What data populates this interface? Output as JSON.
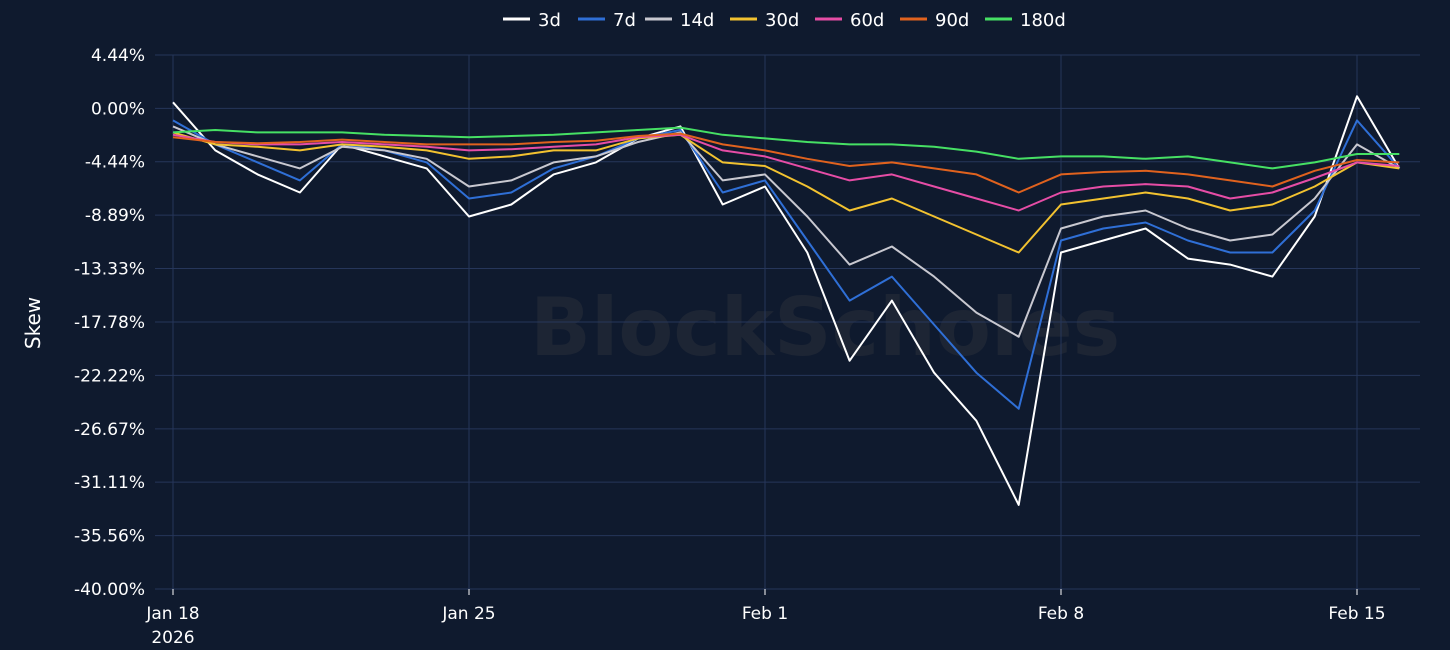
{
  "watermark": "BlockScholes",
  "chart_data": {
    "type": "line",
    "title": "",
    "ylabel": "Skew",
    "xlabel": "",
    "ylim": [
      -40.0,
      4.44
    ],
    "yticks": [
      "4.44%",
      "0.00%",
      "-4.44%",
      "-8.89%",
      "-13.33%",
      "-17.78%",
      "-22.22%",
      "-26.67%",
      "-31.11%",
      "-35.56%",
      "-40.00%"
    ],
    "ytick_values": [
      4.44,
      0.0,
      -4.44,
      -8.89,
      -13.33,
      -17.78,
      -22.22,
      -26.67,
      -31.11,
      -35.56,
      -40.0
    ],
    "xlim": [
      "2026-01-18",
      "2026-02-16"
    ],
    "xticks": [
      {
        "date": "2026-01-18",
        "label": "Jan 18",
        "sublabel": "2026"
      },
      {
        "date": "2026-01-25",
        "label": "Jan 25",
        "sublabel": ""
      },
      {
        "date": "2026-02-01",
        "label": "Feb 1",
        "sublabel": ""
      },
      {
        "date": "2026-02-08",
        "label": "Feb 8",
        "sublabel": ""
      },
      {
        "date": "2026-02-15",
        "label": "Feb 15",
        "sublabel": ""
      }
    ],
    "grid": true,
    "legend_position": "top-center",
    "x": [
      "2026-01-18",
      "2026-01-19",
      "2026-01-20",
      "2026-01-21",
      "2026-01-22",
      "2026-01-23",
      "2026-01-24",
      "2026-01-25",
      "2026-01-26",
      "2026-01-27",
      "2026-01-28",
      "2026-01-29",
      "2026-01-30",
      "2026-01-31",
      "2026-02-01",
      "2026-02-02",
      "2026-02-03",
      "2026-02-04",
      "2026-02-05",
      "2026-02-06",
      "2026-02-07",
      "2026-02-08",
      "2026-02-09",
      "2026-02-10",
      "2026-02-11",
      "2026-02-12",
      "2026-02-13",
      "2026-02-14",
      "2026-02-15",
      "2026-02-16"
    ],
    "series": [
      {
        "name": "3d",
        "color": "#ffffff",
        "values": [
          0.5,
          -3.5,
          -5.5,
          -7.0,
          -3.0,
          -4.0,
          -5.0,
          -9.0,
          -8.0,
          -5.5,
          -4.5,
          -2.5,
          -1.5,
          -8.0,
          -6.5,
          -12.0,
          -21.0,
          -16.0,
          -22.0,
          -26.0,
          -33.0,
          -12.0,
          -11.0,
          -10.0,
          -12.5,
          -13.0,
          -14.0,
          -9.0,
          1.0,
          -5.0
        ]
      },
      {
        "name": "7d",
        "color": "#2f6fd6",
        "values": [
          -1.0,
          -3.0,
          -4.5,
          -6.0,
          -3.0,
          -3.5,
          -4.5,
          -7.5,
          -7.0,
          -5.0,
          -4.0,
          -2.5,
          -1.8,
          -7.0,
          -6.0,
          -11.0,
          -16.0,
          -14.0,
          -18.0,
          -22.0,
          -25.0,
          -11.0,
          -10.0,
          -9.5,
          -11.0,
          -12.0,
          -12.0,
          -8.5,
          -1.0,
          -5.0
        ]
      },
      {
        "name": "14d",
        "color": "#c8c8d0",
        "values": [
          -1.5,
          -3.0,
          -4.0,
          -5.0,
          -3.2,
          -3.5,
          -4.2,
          -6.5,
          -6.0,
          -4.5,
          -4.0,
          -2.8,
          -2.0,
          -6.0,
          -5.5,
          -9.0,
          -13.0,
          -11.5,
          -14.0,
          -17.0,
          -19.0,
          -10.0,
          -9.0,
          -8.5,
          -10.0,
          -11.0,
          -10.5,
          -7.5,
          -3.0,
          -5.0
        ]
      },
      {
        "name": "30d",
        "color": "#f2c230",
        "values": [
          -2.0,
          -3.0,
          -3.2,
          -3.5,
          -3.0,
          -3.2,
          -3.5,
          -4.2,
          -4.0,
          -3.5,
          -3.5,
          -2.5,
          -2.2,
          -4.5,
          -4.8,
          -6.5,
          -8.5,
          -7.5,
          -9.0,
          -10.5,
          -12.0,
          -8.0,
          -7.5,
          -7.0,
          -7.5,
          -8.5,
          -8.0,
          -6.5,
          -4.5,
          -5.0
        ]
      },
      {
        "name": "60d",
        "color": "#e64da6",
        "values": [
          -2.2,
          -2.8,
          -3.0,
          -3.0,
          -2.8,
          -3.0,
          -3.2,
          -3.5,
          -3.4,
          -3.2,
          -3.0,
          -2.4,
          -2.2,
          -3.5,
          -4.0,
          -5.0,
          -6.0,
          -5.5,
          -6.5,
          -7.5,
          -8.5,
          -7.0,
          -6.5,
          -6.3,
          -6.5,
          -7.5,
          -7.0,
          -5.8,
          -4.5,
          -4.8
        ]
      },
      {
        "name": "90d",
        "color": "#e0621e",
        "values": [
          -2.4,
          -2.8,
          -2.9,
          -2.8,
          -2.6,
          -2.8,
          -3.0,
          -3.0,
          -3.0,
          -2.8,
          -2.7,
          -2.3,
          -2.1,
          -3.0,
          -3.5,
          -4.2,
          -4.8,
          -4.5,
          -5.0,
          -5.5,
          -7.0,
          -5.5,
          -5.3,
          -5.2,
          -5.5,
          -6.0,
          -6.5,
          -5.2,
          -4.3,
          -4.5
        ]
      },
      {
        "name": "180d",
        "color": "#46e064",
        "values": [
          -2.0,
          -1.8,
          -2.0,
          -2.0,
          -2.0,
          -2.2,
          -2.3,
          -2.4,
          -2.3,
          -2.2,
          -2.0,
          -1.8,
          -1.6,
          -2.2,
          -2.5,
          -2.8,
          -3.0,
          -3.0,
          -3.2,
          -3.6,
          -4.2,
          -4.0,
          -4.0,
          -4.2,
          -4.0,
          -4.5,
          -5.0,
          -4.5,
          -3.8,
          -3.8
        ]
      }
    ]
  }
}
